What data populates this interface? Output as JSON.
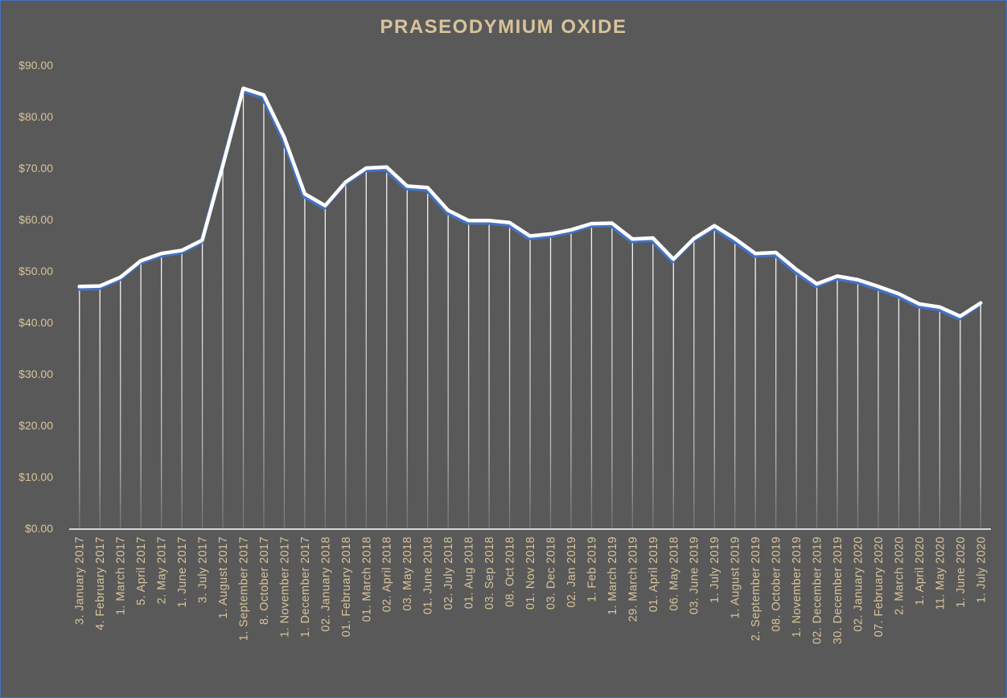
{
  "chart_data": {
    "type": "line",
    "title": "PRASEODYMIUM  OXIDE",
    "xlabel": "",
    "ylabel": "",
    "ylim": [
      0,
      90
    ],
    "yticks": [
      "$0.00",
      "$10.00",
      "$20.00",
      "$30.00",
      "$40.00",
      "$50.00",
      "$60.00",
      "$70.00",
      "$80.00",
      "$90.00"
    ],
    "grid": false,
    "drop_lines": true,
    "categories": [
      "3. January 2017",
      "4. February 2017",
      "1. March 2017",
      "5. April 2017",
      "2. May 2017",
      "1. June 2017",
      "3. July 2017",
      "1. August 2017",
      "1. September 2017",
      "8. October 2017",
      "1. November 2017",
      "1. December 2017",
      "02. January 2018",
      "01. February 2018",
      "01. March 2018",
      "02. April 2018",
      "03. May 2018",
      "01. June 2018",
      "02. July 2018",
      "01. Aug 2018",
      "03. Sep 2018",
      "08. Oct 2018",
      "01. Nov 2018",
      "03. Dec 2018",
      "02. Jan 2019",
      "1. Feb 2019",
      "1. March 2019",
      "29. March 2019",
      "01. April 2019",
      "06. May 2018",
      "03. June 2019",
      "1. July 2019",
      "1. August 2019",
      "2. September 2019",
      "08. October 2019",
      "1. November 2019",
      "02. December 2019",
      "30. December 2019",
      "02. January 2020",
      "07. February 2020",
      "2. March 2020",
      "1. April 2020",
      "11. May 2020",
      "1. June 2020",
      "1. July 2020"
    ],
    "series": [
      {
        "values": [
          47.0,
          47.1,
          48.8,
          52.0,
          53.4,
          54.0,
          56.0,
          70.5,
          85.5,
          84.2,
          76.0,
          65.0,
          62.7,
          67.3,
          70.0,
          70.2,
          66.5,
          66.2,
          61.8,
          59.8,
          59.8,
          59.4,
          56.8,
          57.2,
          58.0,
          59.2,
          59.3,
          56.2,
          56.4,
          52.3,
          56.3,
          58.8,
          56.3,
          53.4,
          53.6,
          50.3,
          47.5,
          49.0,
          48.3,
          47.0,
          45.6,
          43.6,
          43.0,
          41.2,
          43.8
        ]
      }
    ],
    "colors": {
      "background": "#595959",
      "line": "#ffffff",
      "line_shadow": "#4472c4",
      "text": "#d9c39a",
      "axis": "#ffffff"
    }
  }
}
